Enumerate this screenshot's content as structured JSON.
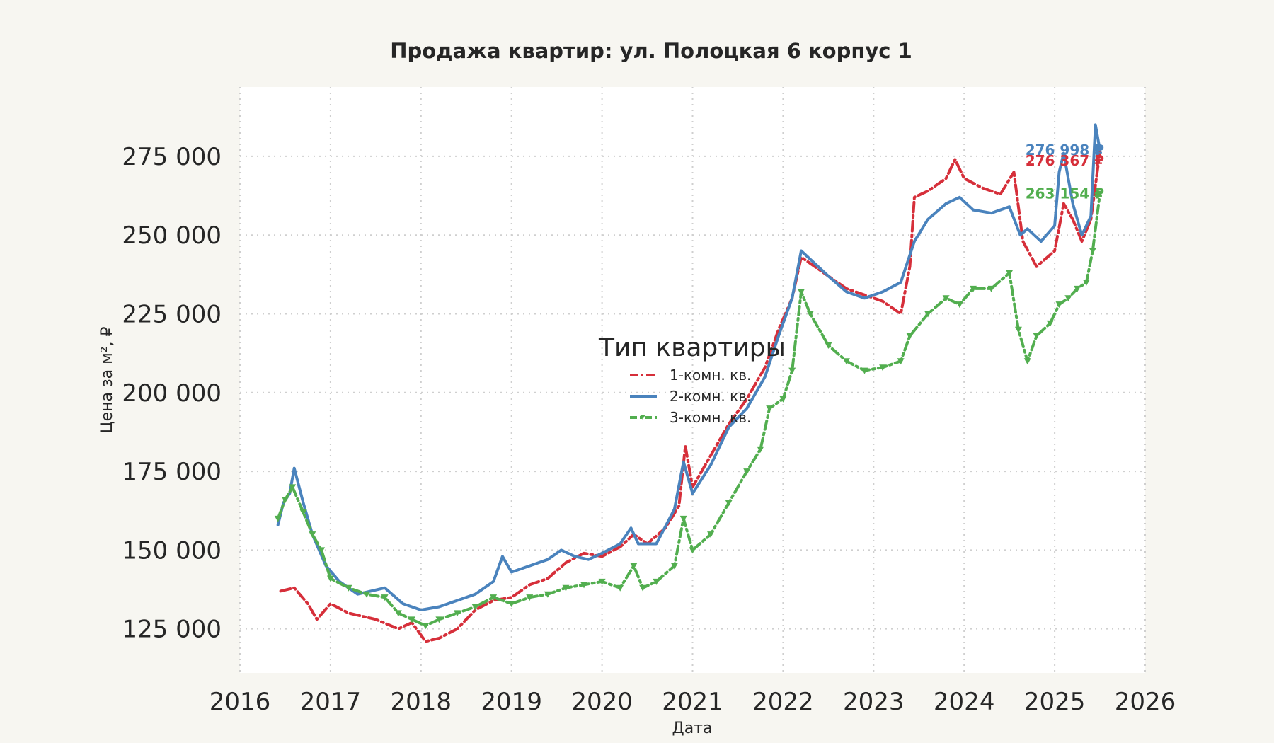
{
  "chart_data": {
    "type": "line",
    "title": "Продажа квартир: ул. Полоцкая 6 корпус 1",
    "xlabel": "Дата",
    "ylabel": "Цена за м², ₽",
    "xlim": [
      2016,
      2026
    ],
    "ylim": [
      111000,
      297000
    ],
    "x_ticks": [
      "2016",
      "2017",
      "2018",
      "2019",
      "2020",
      "2021",
      "2022",
      "2023",
      "2024",
      "2025",
      "2026"
    ],
    "y_ticks": [
      "125 000",
      "150 000",
      "175 000",
      "200 000",
      "225 000",
      "250 000",
      "275 000"
    ],
    "y_tick_values": [
      125000,
      150000,
      175000,
      200000,
      225000,
      250000,
      275000
    ],
    "grid": true,
    "legend": {
      "title": "Тип квартиры",
      "placement": "center",
      "items": [
        "1-комн. кв.",
        "2-комн. кв.",
        "3-комн. кв."
      ]
    },
    "series": [
      {
        "name": "1-комн. кв.",
        "color": "#d62f3a",
        "style": "dash-dot",
        "end_label": "276 367 ₽",
        "x": [
          2016.45,
          2016.6,
          2016.75,
          2016.85,
          2017.0,
          2017.2,
          2017.5,
          2017.75,
          2017.9,
          2018.05,
          2018.2,
          2018.4,
          2018.6,
          2018.8,
          2019.0,
          2019.2,
          2019.4,
          2019.6,
          2019.8,
          2020.0,
          2020.2,
          2020.35,
          2020.5,
          2020.7,
          2020.85,
          2020.92,
          2021.0,
          2021.2,
          2021.4,
          2021.6,
          2021.8,
          2021.95,
          2022.1,
          2022.2,
          2022.35,
          2022.5,
          2022.7,
          2022.9,
          2023.1,
          2023.3,
          2023.4,
          2023.45,
          2023.6,
          2023.8,
          2023.9,
          2024.0,
          2024.2,
          2024.4,
          2024.55,
          2024.65,
          2024.8,
          2025.0,
          2025.1,
          2025.2,
          2025.3,
          2025.4,
          2025.5
        ],
        "y": [
          137000,
          138000,
          133000,
          128000,
          133000,
          130000,
          128000,
          125000,
          127000,
          121000,
          122000,
          125000,
          131000,
          134000,
          135000,
          139000,
          141000,
          146000,
          149000,
          148000,
          151000,
          155000,
          152000,
          157000,
          164000,
          183000,
          170000,
          180000,
          190000,
          198000,
          208000,
          220000,
          230000,
          243000,
          240000,
          237000,
          233000,
          231000,
          229000,
          225000,
          240000,
          262000,
          264000,
          268000,
          274000,
          268000,
          265000,
          263000,
          270000,
          248000,
          240000,
          245000,
          260000,
          255000,
          248000,
          255000,
          276367
        ]
      },
      {
        "name": "2-комн. кв.",
        "color": "#4a83bd",
        "style": "solid",
        "end_label": "276 998 ₽",
        "x": [
          2016.42,
          2016.48,
          2016.55,
          2016.6,
          2016.7,
          2016.8,
          2016.95,
          2017.1,
          2017.3,
          2017.6,
          2017.8,
          2018.0,
          2018.2,
          2018.4,
          2018.6,
          2018.8,
          2018.9,
          2019.0,
          2019.2,
          2019.4,
          2019.55,
          2019.7,
          2019.85,
          2020.0,
          2020.2,
          2020.32,
          2020.4,
          2020.6,
          2020.8,
          2020.9,
          2021.0,
          2021.2,
          2021.4,
          2021.6,
          2021.8,
          2021.95,
          2022.1,
          2022.2,
          2022.35,
          2022.5,
          2022.7,
          2022.9,
          2023.1,
          2023.3,
          2023.45,
          2023.6,
          2023.8,
          2023.95,
          2024.1,
          2024.3,
          2024.5,
          2024.62,
          2024.7,
          2024.85,
          2025.0,
          2025.05,
          2025.1,
          2025.2,
          2025.3,
          2025.4,
          2025.45,
          2025.5
        ],
        "y": [
          158000,
          165000,
          168000,
          176000,
          165000,
          155000,
          145000,
          140000,
          136000,
          138000,
          133000,
          131000,
          132000,
          134000,
          136000,
          140000,
          148000,
          143000,
          145000,
          147000,
          150000,
          148000,
          147000,
          149000,
          152000,
          157000,
          152000,
          152000,
          163000,
          178000,
          168000,
          177000,
          189000,
          195000,
          205000,
          218000,
          230000,
          245000,
          241000,
          237000,
          232000,
          230000,
          232000,
          235000,
          248000,
          255000,
          260000,
          262000,
          258000,
          257000,
          259000,
          250000,
          252000,
          248000,
          253000,
          270000,
          276000,
          260000,
          250000,
          256000,
          285000,
          276998
        ]
      },
      {
        "name": "3-комн. кв.",
        "color": "#52ae4f",
        "style": "dash-dot-marker",
        "end_label": "263 154 ₽",
        "x": [
          2016.42,
          2016.5,
          2016.58,
          2016.7,
          2016.8,
          2016.9,
          2017.0,
          2017.2,
          2017.4,
          2017.6,
          2017.75,
          2017.9,
          2018.05,
          2018.2,
          2018.4,
          2018.6,
          2018.8,
          2019.0,
          2019.2,
          2019.4,
          2019.6,
          2019.8,
          2020.0,
          2020.2,
          2020.35,
          2020.45,
          2020.6,
          2020.8,
          2020.9,
          2021.0,
          2021.2,
          2021.4,
          2021.6,
          2021.75,
          2021.85,
          2022.0,
          2022.1,
          2022.2,
          2022.3,
          2022.5,
          2022.7,
          2022.9,
          2023.1,
          2023.3,
          2023.4,
          2023.6,
          2023.8,
          2023.95,
          2024.1,
          2024.3,
          2024.5,
          2024.6,
          2024.7,
          2024.8,
          2024.95,
          2025.05,
          2025.15,
          2025.25,
          2025.35,
          2025.42,
          2025.5
        ],
        "y": [
          160000,
          166000,
          170000,
          162000,
          155000,
          150000,
          141000,
          138000,
          136000,
          135000,
          130000,
          128000,
          126000,
          128000,
          130000,
          132000,
          135000,
          133000,
          135000,
          136000,
          138000,
          139000,
          140000,
          138000,
          145000,
          138000,
          140000,
          145000,
          160000,
          150000,
          155000,
          165000,
          175000,
          182000,
          195000,
          198000,
          207000,
          232000,
          225000,
          215000,
          210000,
          207000,
          208000,
          210000,
          218000,
          225000,
          230000,
          228000,
          233000,
          233000,
          238000,
          220000,
          210000,
          218000,
          222000,
          228000,
          230000,
          233000,
          235000,
          245000,
          263154
        ]
      }
    ]
  }
}
